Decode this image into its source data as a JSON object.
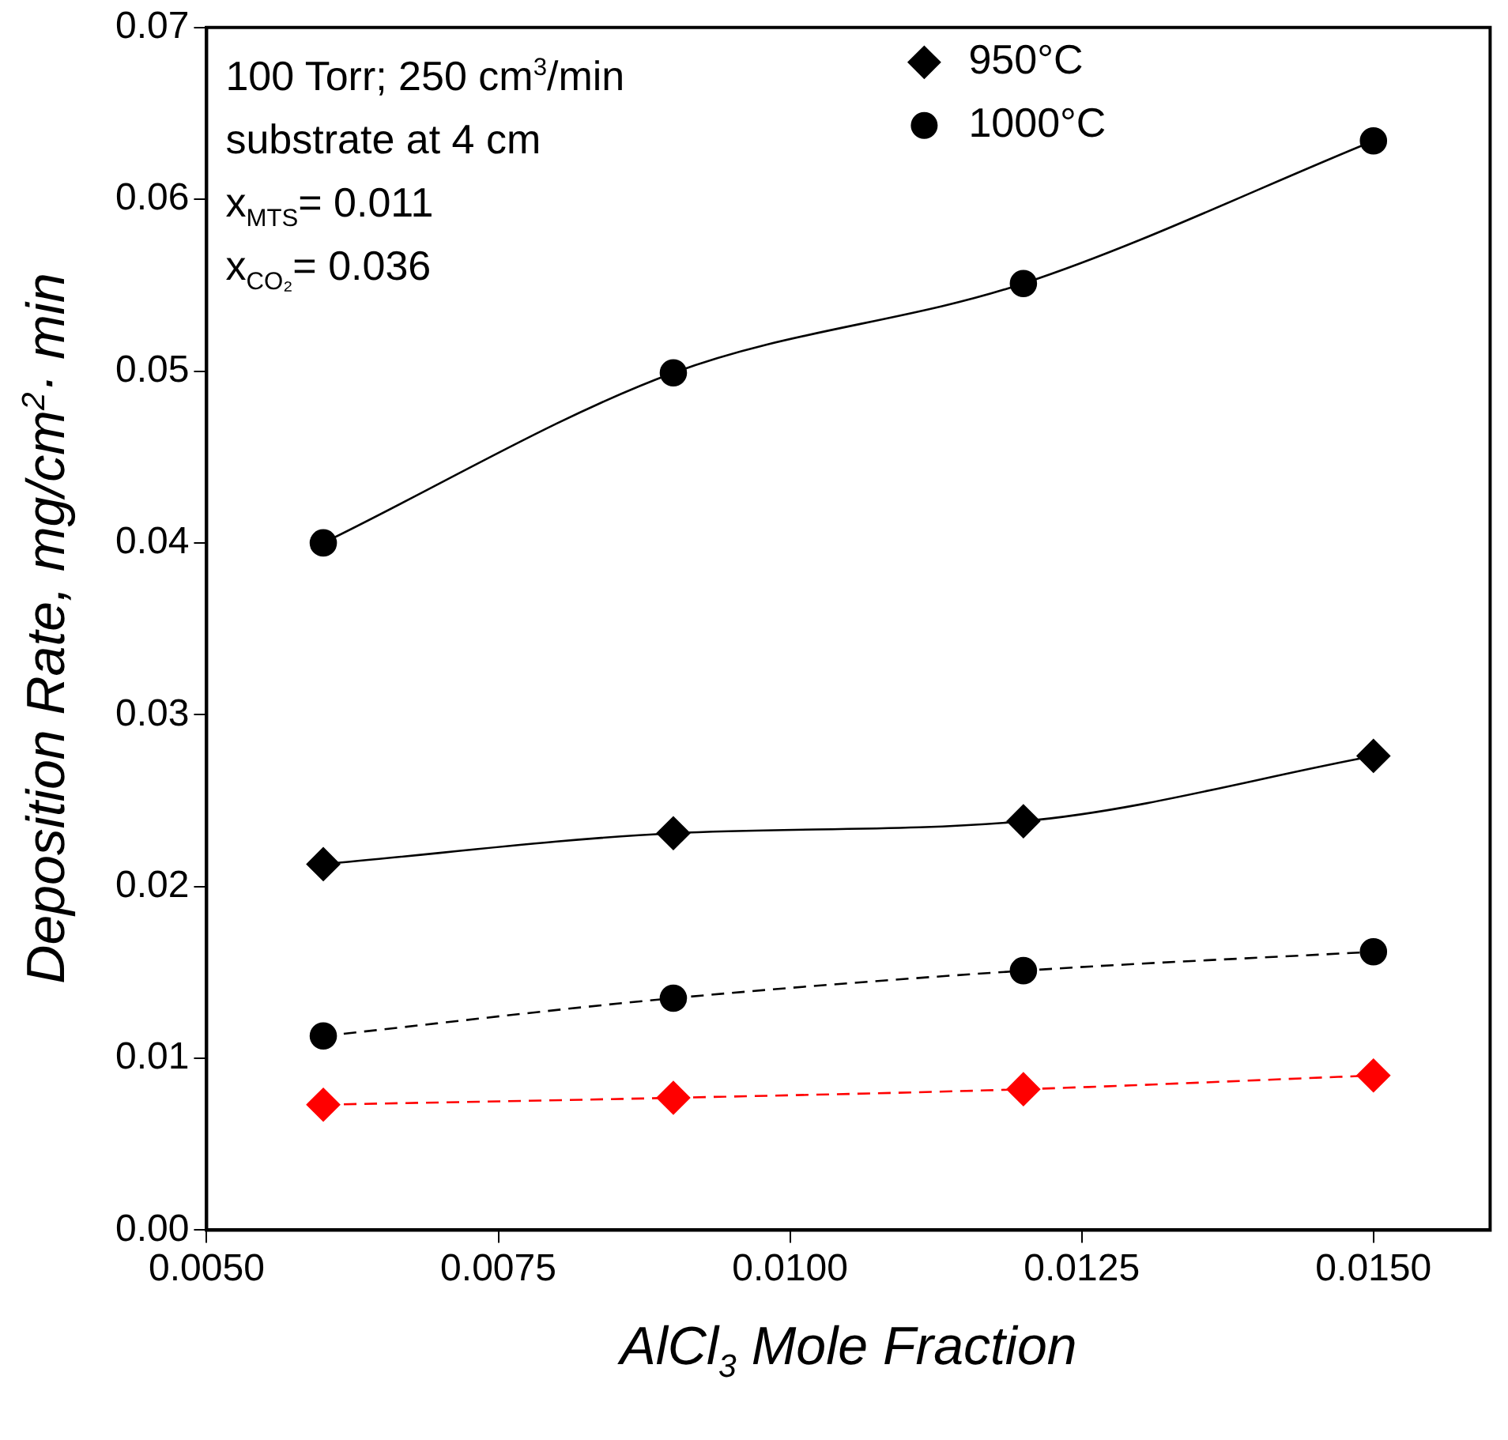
{
  "chart_data": {
    "type": "line",
    "xlabel": "AlCl$_{3}$ Mole Fraction",
    "ylabel": "Deposition Rate, mg/cm$^{2}$· min",
    "x": [
      0.006,
      0.009,
      0.012,
      0.015
    ],
    "xlim": [
      0.005,
      0.016
    ],
    "xticks": [
      {
        "value": 0.005,
        "label": "0.0050"
      },
      {
        "value": 0.0075,
        "label": "0.0075"
      },
      {
        "value": 0.01,
        "label": "0.0100"
      },
      {
        "value": 0.0125,
        "label": "0.0125"
      },
      {
        "value": 0.015,
        "label": "0.0150"
      }
    ],
    "ylim": [
      0,
      0.07
    ],
    "yticks": [
      {
        "value": 0,
        "label": "0.00"
      },
      0.01,
      0.02,
      0.03,
      0.04,
      0.05,
      0.06,
      0.07
    ],
    "grid": false,
    "legend": "top right",
    "annotations": [
      "100 Torr; 250 cm$^{3}$/min",
      "substrate at 4 cm",
      "x$_{MTS}$= 0.011",
      "x$_{CO₂}$= 0.036"
    ],
    "series": [
      {
        "name": "950°C",
        "color": "#000000",
        "marker": "diamond",
        "line_style": "solid",
        "values": [
          0.0213,
          0.0231,
          0.0238,
          0.0276
        ]
      },
      {
        "name": "1000°C",
        "color": "#000000",
        "marker": "circle",
        "line_style": "solid",
        "values": [
          0.04,
          0.0499,
          0.0551,
          0.0634
        ]
      },
      {
        "color": "#000000",
        "marker": "circle",
        "line_style": "dashed",
        "values": [
          0.0113,
          0.0135,
          0.0151,
          0.0162
        ]
      },
      {
        "color": "#ff0000",
        "marker": "diamond",
        "line_style": "dashed",
        "values": [
          0.0073,
          0.0077,
          0.0082,
          0.009
        ]
      }
    ]
  }
}
